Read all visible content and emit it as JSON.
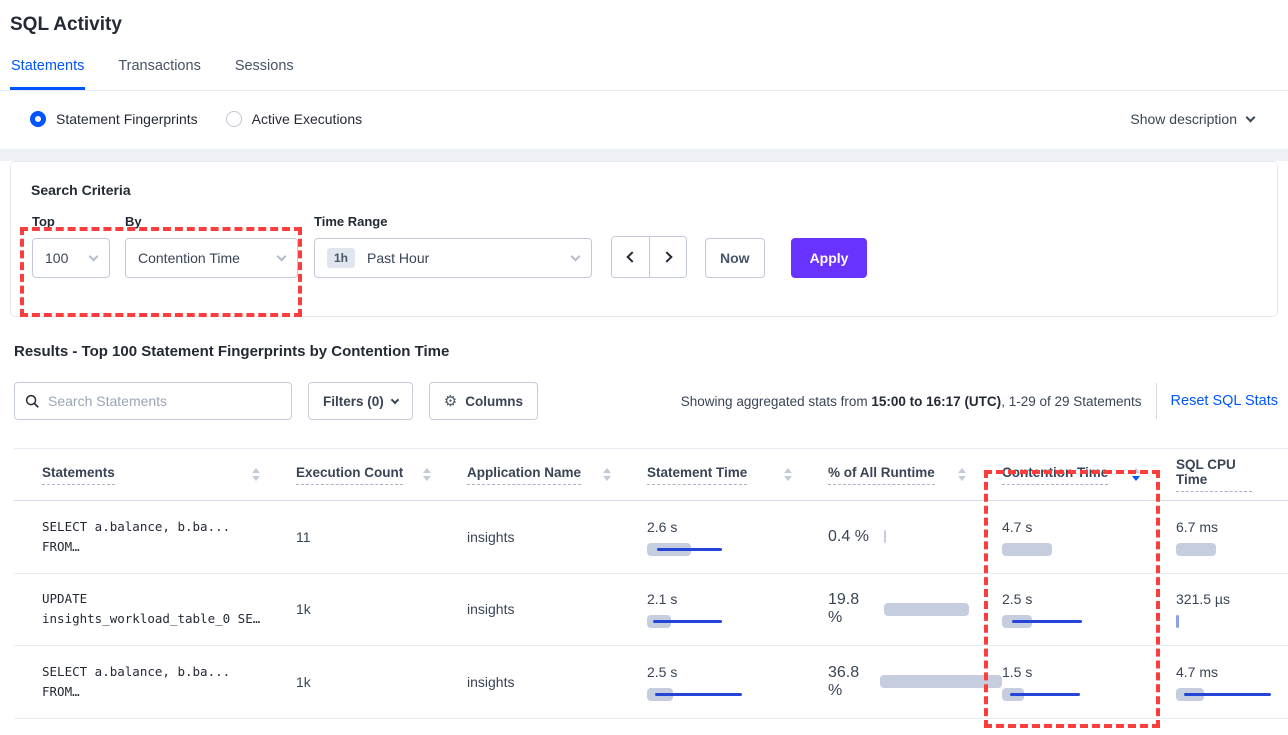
{
  "page": {
    "title": "SQL Activity"
  },
  "tabs": [
    {
      "label": "Statements",
      "active": true
    },
    {
      "label": "Transactions",
      "active": false
    },
    {
      "label": "Sessions",
      "active": false
    }
  ],
  "view_toggle": {
    "options": [
      {
        "label": "Statement Fingerprints",
        "selected": true
      },
      {
        "label": "Active Executions",
        "selected": false
      }
    ],
    "show_description_label": "Show description"
  },
  "search_criteria": {
    "title": "Search Criteria",
    "top": {
      "label": "Top",
      "value": "100"
    },
    "by": {
      "label": "By",
      "value": "Contention Time"
    },
    "time_range": {
      "label": "Time Range",
      "badge": "1h",
      "value": "Past Hour"
    },
    "now_label": "Now",
    "apply_label": "Apply"
  },
  "results": {
    "heading": "Results - Top 100 Statement Fingerprints by Contention Time",
    "search_placeholder": "Search Statements",
    "filters_label": "Filters (0)",
    "columns_label": "Columns",
    "stats_prefix": "Showing aggregated stats from ",
    "stats_bold": "15:00 to 16:17 (UTC)",
    "stats_suffix": ", 1-29 of 29 Statements",
    "reset_label": "Reset SQL Stats"
  },
  "table": {
    "headers": [
      {
        "label": "Statements",
        "sorted": "none"
      },
      {
        "label": "Execution Count",
        "sorted": "none"
      },
      {
        "label": "Application Name",
        "sorted": "none"
      },
      {
        "label": "Statement Time",
        "sorted": "none"
      },
      {
        "label": "% of All Runtime",
        "sorted": "none"
      },
      {
        "label": "Contention Time",
        "sorted": "desc"
      },
      {
        "label": "SQL CPU Time",
        "sorted": "none"
      }
    ],
    "rows": [
      {
        "stmt": [
          "SELECT a.balance, b.ba...",
          "FROM…"
        ],
        "exec": {
          "t": "11",
          "b": 2
        },
        "app": "insights",
        "stime": {
          "t": "2.6 s",
          "b": 44,
          "ll": 10,
          "lw": 65
        },
        "pct": {
          "t": "0.4 %",
          "b": 2
        },
        "cont": {
          "t": "4.7 s",
          "b": 50
        },
        "cpu": {
          "t": "6.7 ms",
          "b": 40
        }
      },
      {
        "stmt": [
          "UPDATE",
          "insights_workload_table_0 SE…"
        ],
        "exec": {
          "t": "1k",
          "b": 64
        },
        "app": "insights",
        "stime": {
          "t": "2.1 s",
          "b": 24,
          "ll": 6,
          "lw": 69
        },
        "pct": {
          "t": "19.8 %",
          "b": 85
        },
        "cont": {
          "t": "2.5 s",
          "b": 30,
          "ll": 10,
          "lw": 70
        },
        "cpu": {
          "t": "321.5 µs",
          "b": 3,
          "bc": "#8ba1e6"
        }
      },
      {
        "stmt": [
          "SELECT a.balance, b.ba...",
          "FROM…"
        ],
        "exec": {
          "t": "1k",
          "b": 64
        },
        "app": "insights",
        "stime": {
          "t": "2.5 s",
          "b": 26,
          "ll": 8,
          "lw": 87
        },
        "pct": {
          "t": "36.8 %",
          "b": 122
        },
        "cont": {
          "t": "1.5 s",
          "b": 22,
          "ll": 8,
          "lw": 70
        },
        "cpu": {
          "t": "4.7 ms",
          "b": 28,
          "ll": 8,
          "lw": 87
        }
      }
    ]
  },
  "colors": {
    "accent_blue": "#0055ff",
    "apply_purple": "#6933ff",
    "annotation_red": "#fa3e3e",
    "bar_gray": "#c6cdde",
    "bar_line_blue": "#2544d8"
  }
}
